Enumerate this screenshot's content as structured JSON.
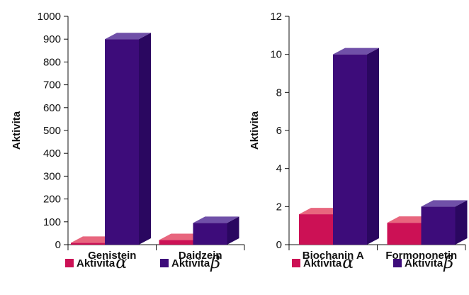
{
  "chart_data": [
    {
      "type": "bar",
      "ylabel": "Aktivita",
      "ylim": [
        0,
        1000
      ],
      "yticks": [
        0,
        100,
        200,
        300,
        400,
        500,
        600,
        700,
        800,
        900,
        1000
      ],
      "categories": [
        "Genistein",
        "Daidzein"
      ],
      "series": [
        {
          "name": "Aktivita α",
          "label": "Aktivita",
          "symbol": "α",
          "color": "#cc1155",
          "top_color": "#e8667e",
          "side_color": "#a00f45",
          "values": [
            8,
            20
          ]
        },
        {
          "name": "Aktivita β",
          "label": "Aktivita",
          "symbol": "β",
          "color": "#3d0c7a",
          "top_color": "#7050a8",
          "side_color": "#2a0760",
          "values": [
            900,
            95
          ]
        }
      ],
      "grid": false,
      "legend": "bottom"
    },
    {
      "type": "bar",
      "ylabel": "Aktivita",
      "ylim": [
        0,
        12
      ],
      "yticks": [
        0,
        2,
        4,
        6,
        8,
        10,
        12
      ],
      "categories": [
        "Biochanin A",
        "Formononetin"
      ],
      "series": [
        {
          "name": "Aktivita α",
          "label": "Aktivita",
          "symbol": "α",
          "color": "#cc1155",
          "top_color": "#e8667e",
          "side_color": "#a00f45",
          "values": [
            1.6,
            1.15
          ]
        },
        {
          "name": "Aktivita β",
          "label": "Aktivita",
          "symbol": "β",
          "color": "#3d0c7a",
          "top_color": "#7050a8",
          "side_color": "#2a0760",
          "values": [
            10,
            2
          ]
        }
      ],
      "grid": false,
      "legend": "bottom"
    }
  ]
}
